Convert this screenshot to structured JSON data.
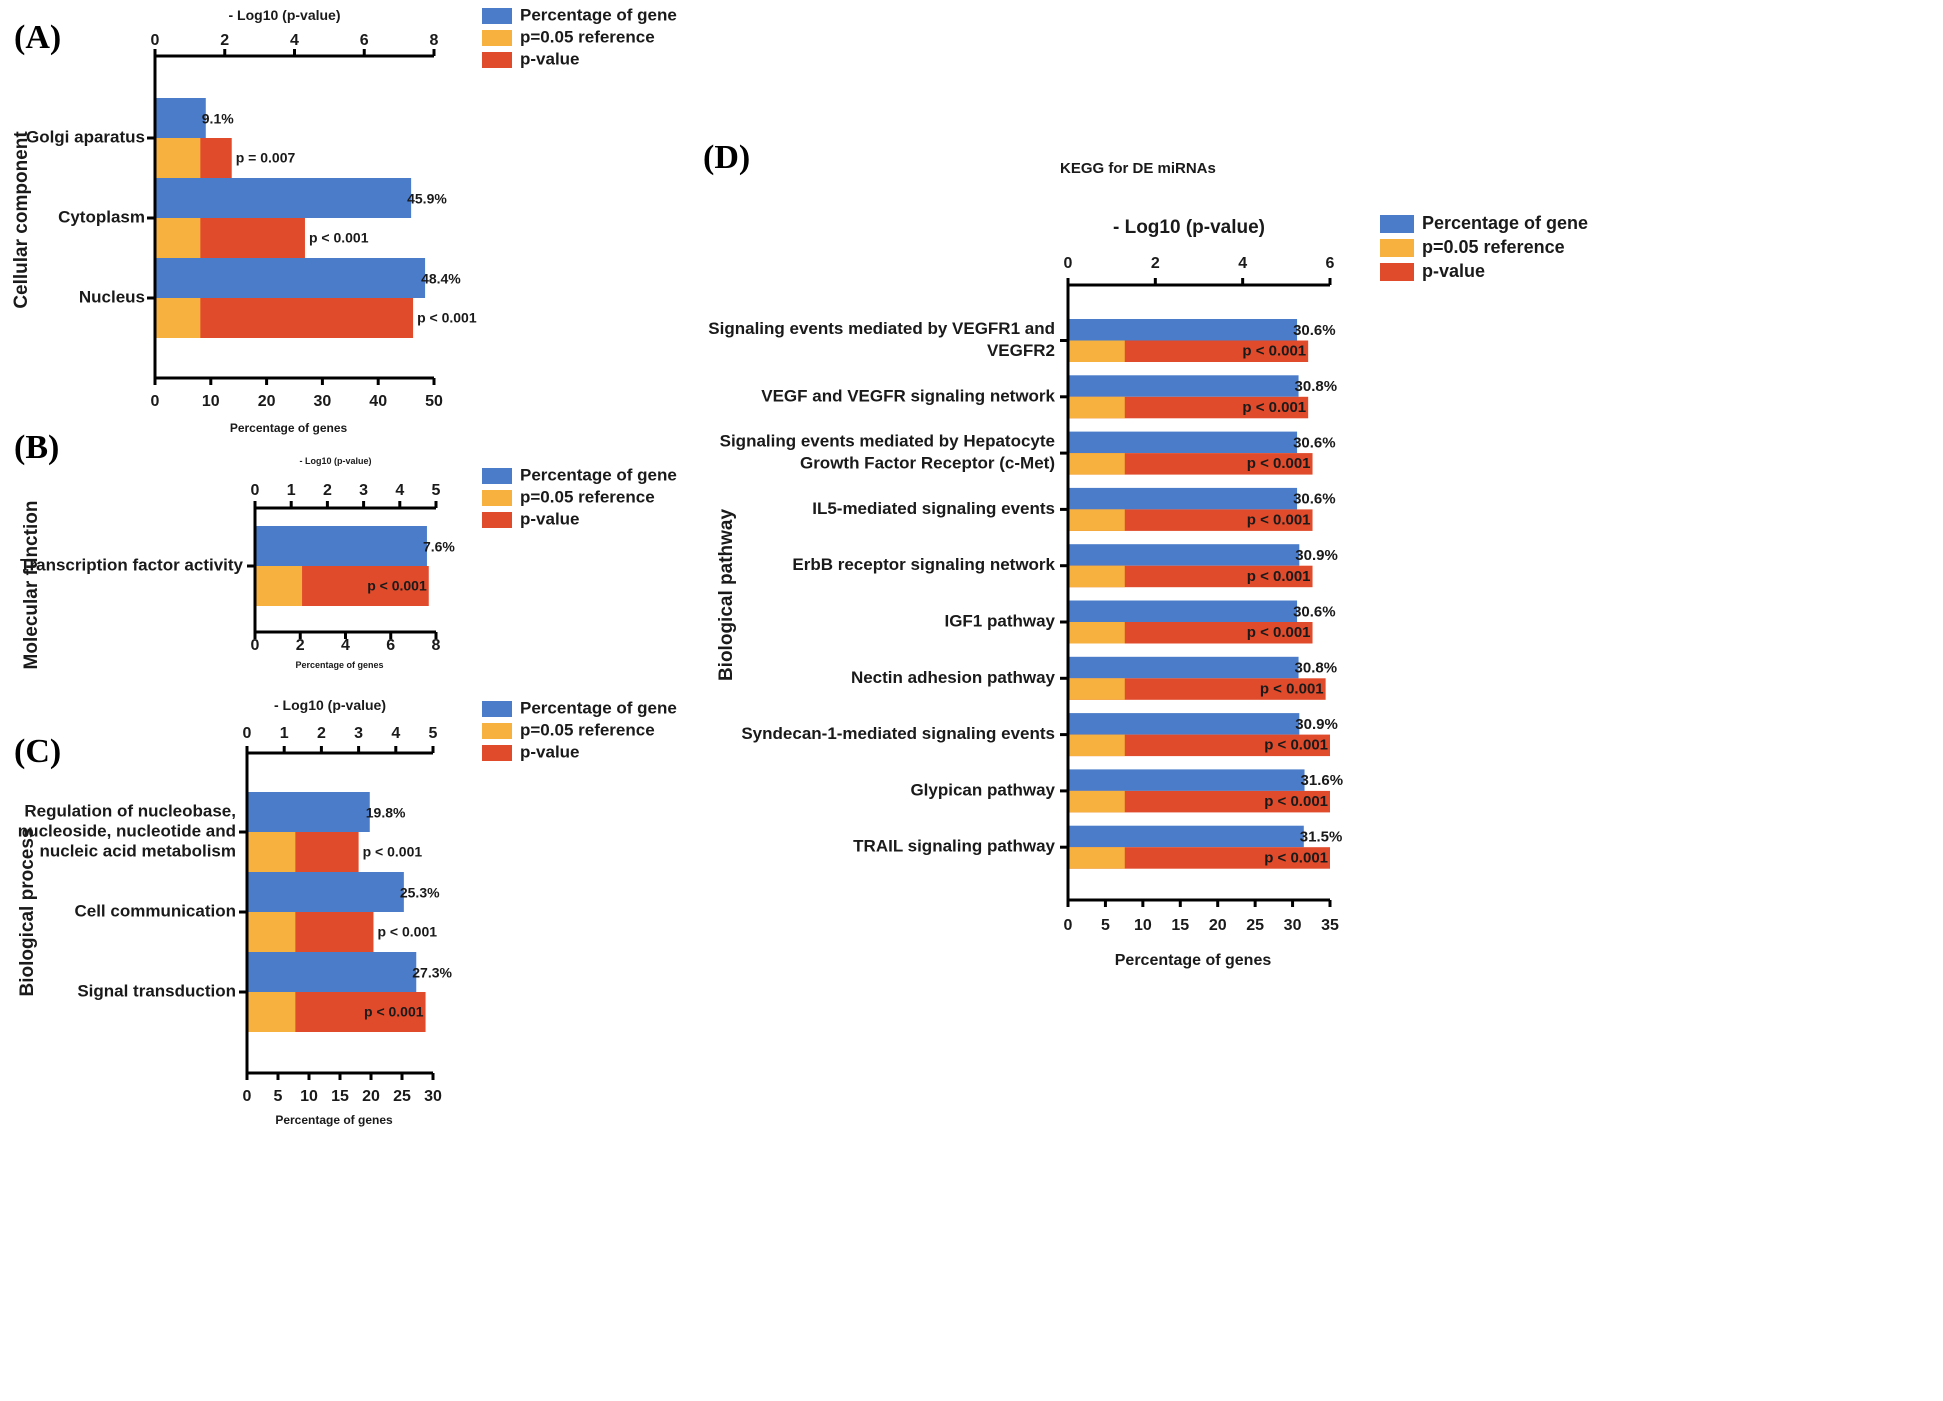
{
  "colors": {
    "percentage": "#4a7cc9",
    "reference": "#f7b13f",
    "pvalue": "#e04b2b",
    "axis": "#000000"
  },
  "legend_labels": [
    "Percentage of gene",
    "p=0.05 reference",
    "p-value"
  ],
  "chart_data": [
    {
      "panel": "(A)",
      "type": "bar",
      "orientation": "horizontal",
      "ylabel": "Cellular component",
      "xlabel": "Percentage of genes",
      "top_axis_label": "- Log10 (p-value)",
      "bottom_ticks": [
        "0",
        "10",
        "20",
        "30",
        "40",
        "50"
      ],
      "top_ticks": [
        "0",
        "2",
        "4",
        "6",
        "8"
      ],
      "bottom_range": [
        0,
        50
      ],
      "top_range": [
        0,
        8
      ],
      "reference_log10": 1.3,
      "categories": [
        "Golgi aparatus",
        "Cytoplasm",
        "Nucleus"
      ],
      "percentages": [
        9.1,
        45.9,
        48.4
      ],
      "percentage_labels": [
        "9.1%",
        "45.9%",
        "48.4%"
      ],
      "neg_log10_p": [
        2.2,
        4.3,
        7.4
      ],
      "p_labels": [
        "p = 0.007",
        "p < 0.001",
        "p < 0.001"
      ]
    },
    {
      "panel": "(B)",
      "type": "bar",
      "orientation": "horizontal",
      "ylabel": "Molecular function",
      "xlabel": "Percentage of genes",
      "top_axis_label": "- Log10 (p-value)",
      "bottom_ticks": [
        "0",
        "2",
        "4",
        "6",
        "8"
      ],
      "top_ticks": [
        "0",
        "1",
        "2",
        "3",
        "4",
        "5"
      ],
      "bottom_range": [
        0,
        8
      ],
      "top_range": [
        0,
        5
      ],
      "reference_log10": 1.3,
      "categories": [
        "Transcription factor activity"
      ],
      "percentages": [
        7.6
      ],
      "percentage_labels": [
        "7.6%"
      ],
      "neg_log10_p": [
        4.8
      ],
      "p_labels": [
        "p < 0.001"
      ]
    },
    {
      "panel": "(C)",
      "type": "bar",
      "orientation": "horizontal",
      "ylabel": "Biological process",
      "xlabel": "Percentage of genes",
      "top_axis_label": "- Log10 (p-value)",
      "bottom_ticks": [
        "0",
        "5",
        "10",
        "15",
        "20",
        "25",
        "30"
      ],
      "top_ticks": [
        "0",
        "1",
        "2",
        "3",
        "4",
        "5"
      ],
      "bottom_range": [
        0,
        30
      ],
      "top_range": [
        0,
        5
      ],
      "reference_log10": 1.3,
      "categories": [
        [
          "Regulation of nucleobase,",
          "nucleoside, nucleotide and",
          "nucleic acid metabolism"
        ],
        [
          "Cell communication"
        ],
        [
          "Signal transduction"
        ]
      ],
      "percentages": [
        19.8,
        25.3,
        27.3
      ],
      "percentage_labels": [
        "19.8%",
        "25.3%",
        "27.3%"
      ],
      "neg_log10_p": [
        3.0,
        3.4,
        4.8
      ],
      "p_labels": [
        "p < 0.001",
        "p < 0.001",
        "p < 0.001"
      ]
    },
    {
      "panel": "(D)",
      "title": "KEGG for DE miRNAs",
      "type": "bar",
      "orientation": "horizontal",
      "ylabel": "Biological pathway",
      "xlabel": "Percentage of genes",
      "top_axis_label": "- Log10 (p-value)",
      "bottom_ticks": [
        "0",
        "5",
        "10",
        "15",
        "20",
        "25",
        "30",
        "35"
      ],
      "top_ticks": [
        "0",
        "2",
        "4",
        "6"
      ],
      "bottom_range": [
        0,
        35
      ],
      "top_range": [
        0,
        6
      ],
      "reference_log10": 1.3,
      "categories": [
        [
          "Signaling events mediated by VEGFR1 and",
          "VEGFR2"
        ],
        [
          "VEGF and VEGFR signaling network"
        ],
        [
          "Signaling events mediated by Hepatocyte",
          "Growth Factor Receptor (c-Met)"
        ],
        [
          "IL5-mediated signaling events"
        ],
        [
          "ErbB receptor signaling network"
        ],
        [
          "IGF1 pathway"
        ],
        [
          "Nectin adhesion pathway"
        ],
        [
          "Syndecan-1-mediated signaling events"
        ],
        [
          "Glypican pathway"
        ],
        [
          "TRAIL signaling pathway"
        ]
      ],
      "percentages": [
        30.6,
        30.8,
        30.6,
        30.6,
        30.9,
        30.6,
        30.8,
        30.9,
        31.6,
        31.5
      ],
      "percentage_labels": [
        "30.6%",
        "30.8%",
        "30.6%",
        "30.6%",
        "30.9%",
        "30.6%",
        "30.8%",
        "30.9%",
        "31.6%",
        "31.5%"
      ],
      "neg_log10_p": [
        5.5,
        5.5,
        5.6,
        5.6,
        5.6,
        5.6,
        5.9,
        6.0,
        6.0,
        6.0
      ],
      "p_labels": [
        "p < 0.001",
        "p < 0.001",
        "p < 0.001",
        "p < 0.001",
        "p < 0.001",
        "p < 0.001",
        "p < 0.001",
        "p < 0.001",
        "p < 0.001",
        "p < 0.001"
      ]
    }
  ]
}
